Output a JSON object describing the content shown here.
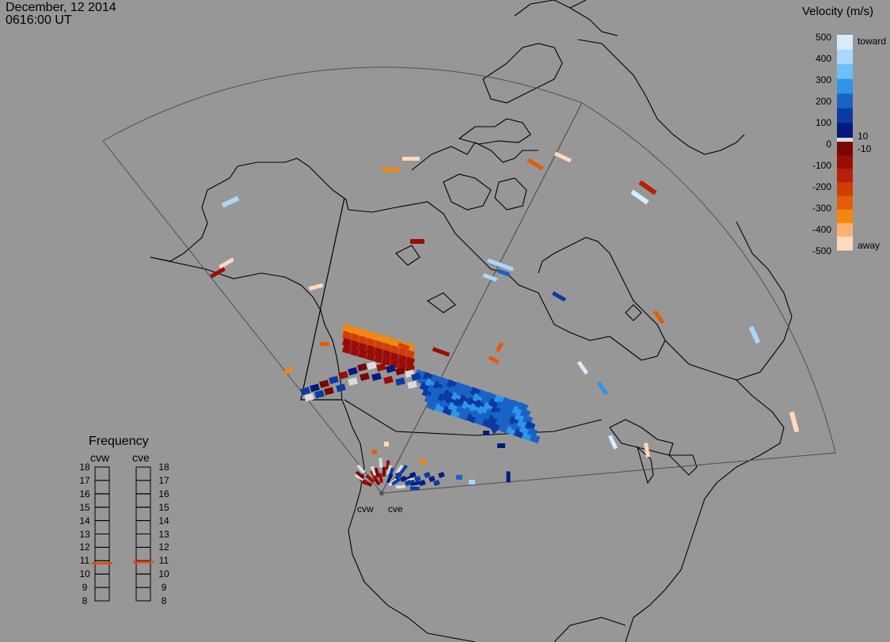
{
  "header": {
    "date": "December, 12 2014",
    "time": "0616:00 UT"
  },
  "velocity_scale": {
    "title": "Velocity (m/s)",
    "ticks": [
      "500",
      "400",
      "300",
      "200",
      "100",
      "0",
      "-100",
      "-200",
      "-300",
      "-400",
      "-500"
    ],
    "label_toward": "toward",
    "label_away": "away",
    "label_pos_small": "10",
    "label_neg_small": "-10",
    "colors_toward": [
      "#d6ecff",
      "#a9d8fb",
      "#6dbff5",
      "#2e95e8",
      "#1a63c6",
      "#0b3aa3",
      "#061a7e"
    ],
    "colors_away": [
      "#7a0606",
      "#9a0c06",
      "#b81f06",
      "#d03e06",
      "#e55c06",
      "#f58610",
      "#fbb072",
      "#fdd9bd"
    ],
    "zero_color": "#dcdcdc"
  },
  "frequency_panel": {
    "title": "Frequency",
    "radars": [
      "cvw",
      "cve"
    ],
    "levels": [
      "18",
      "17",
      "16",
      "15",
      "14",
      "13",
      "12",
      "11",
      "10",
      "9",
      "8"
    ],
    "indicator_color": "#e04b14",
    "cvw_frequency": 10.8,
    "cve_frequency": 10.9
  },
  "map": {
    "radar_labels": [
      "cvw",
      "cve"
    ],
    "coastline_color": "#000000",
    "fov_color": "#4a4a4a",
    "background": "#979797"
  }
}
